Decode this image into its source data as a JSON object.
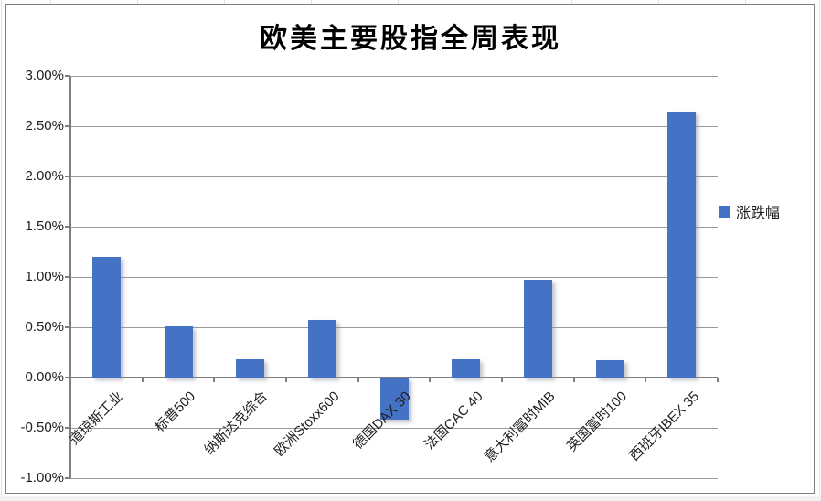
{
  "chart": {
    "title": "欧美主要股指全周表现",
    "legend": {
      "label": "涨跌幅",
      "swatch_color": "#4472C4",
      "position": "right"
    }
  },
  "chart_data": {
    "type": "bar",
    "title": "欧美主要股指全周表现",
    "categories": [
      "道琼斯工业",
      "标普500",
      "纳斯达克综合",
      "欧洲Stoxx600",
      "德国DAX 30",
      "法国CAC 40",
      "意大利富时MIB",
      "英国富时100",
      "西班牙IBEX 35"
    ],
    "series": [
      {
        "name": "涨跌幅",
        "values": [
          1.2,
          0.51,
          0.18,
          0.57,
          -0.42,
          0.18,
          0.97,
          0.17,
          2.65
        ]
      }
    ],
    "value_unit": "percent",
    "ylim": [
      -1.0,
      3.0
    ],
    "ytick_step": 0.5,
    "ytick_labels": [
      "3.00%",
      "2.50%",
      "2.00%",
      "1.50%",
      "1.00%",
      "0.50%",
      "0.00%",
      "-0.50%",
      "-1.00%"
    ],
    "xlabel": "",
    "ylabel": "",
    "grid": true,
    "legend_position": "right",
    "bar_color": "#4472C4"
  },
  "colors": {
    "bar": "#4472C4",
    "gridline": "#9a9a9a",
    "axis": "#7f7f7f",
    "border": "#7f7f7f",
    "text": "#1f1f1f"
  }
}
